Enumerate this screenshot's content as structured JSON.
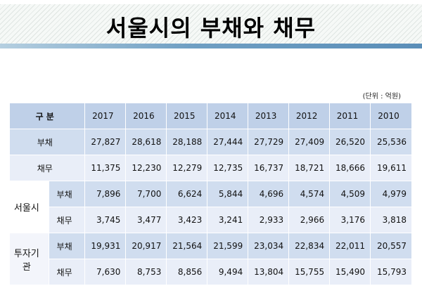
{
  "title": "서울시의 부채와 채무",
  "unit_note": "(단위 : 억원)",
  "table": {
    "corner": "구 분",
    "years": [
      "2017",
      "2016",
      "2015",
      "2014",
      "2013",
      "2012",
      "2011",
      "2010"
    ],
    "rows": [
      {
        "label": "부채",
        "values": [
          "27,827",
          "28,618",
          "28,188",
          "27,444",
          "27,729",
          "27,409",
          "26,520",
          "25,536"
        ]
      },
      {
        "label": "채무",
        "values": [
          "11,375",
          "12,230",
          "12,279",
          "12,735",
          "16,737",
          "18,721",
          "18,666",
          "19,611"
        ]
      }
    ],
    "groups": [
      {
        "label": "서울시",
        "rows": [
          {
            "label": "부채",
            "values": [
              "7,896",
              "7,700",
              "6,624",
              "5,844",
              "4,696",
              "4,574",
              "4,509",
              "4,979"
            ]
          },
          {
            "label": "채무",
            "values": [
              "3,745",
              "3,477",
              "3,423",
              "3,241",
              "2,933",
              "2,966",
              "3,176",
              "3,818"
            ]
          }
        ]
      },
      {
        "label": "투자기관",
        "rows": [
          {
            "label": "부채",
            "values": [
              "19,931",
              "20,917",
              "21,564",
              "21,599",
              "23,034",
              "22,834",
              "22,011",
              "20,557"
            ]
          },
          {
            "label": "채무",
            "values": [
              "7,630",
              "8,753",
              "8,856",
              "9,494",
              "13,804",
              "15,755",
              "15,490",
              "15,793"
            ]
          }
        ]
      }
    ]
  }
}
